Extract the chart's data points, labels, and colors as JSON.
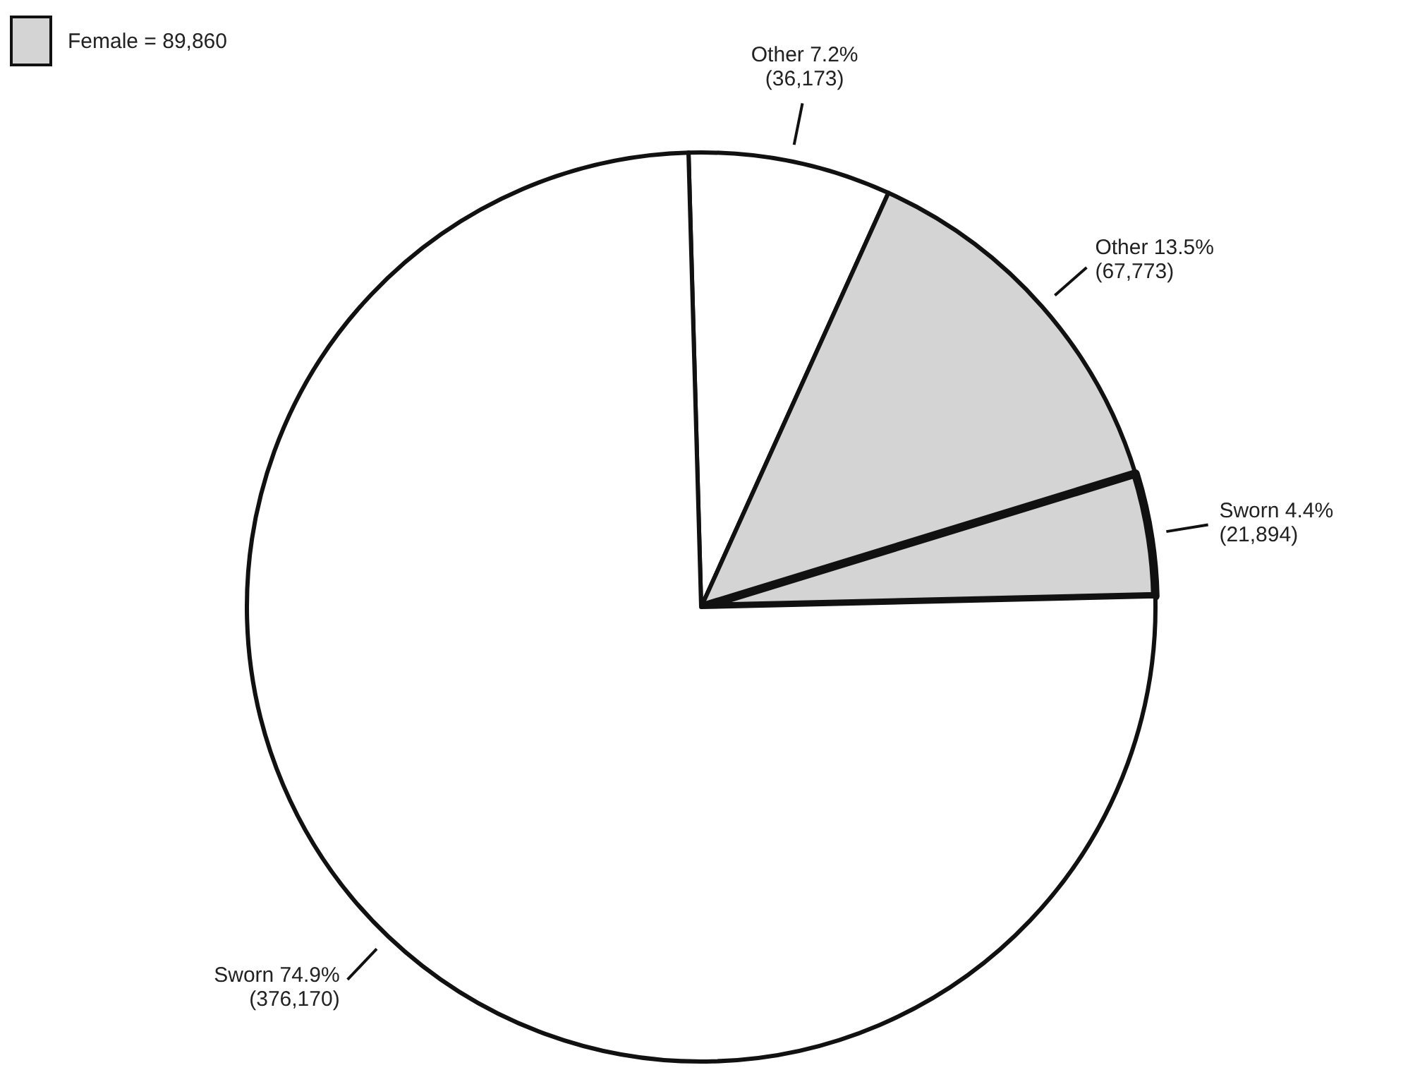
{
  "chart_data": {
    "type": "pie",
    "legend_title": "Female = 89,860",
    "categories": [
      "Other 7.2%",
      "Other 13.5%",
      "Sworn 4.4%",
      "Sworn 74.9%"
    ],
    "values": [
      36173,
      67773,
      21894,
      376170
    ],
    "value_labels": [
      "(36,173)",
      "(67,773)",
      "(21,894)",
      "(376,170)"
    ],
    "colors": [
      "#ffffff",
      "#d4d4d4",
      "#d4d4d4",
      "#ffffff"
    ]
  }
}
